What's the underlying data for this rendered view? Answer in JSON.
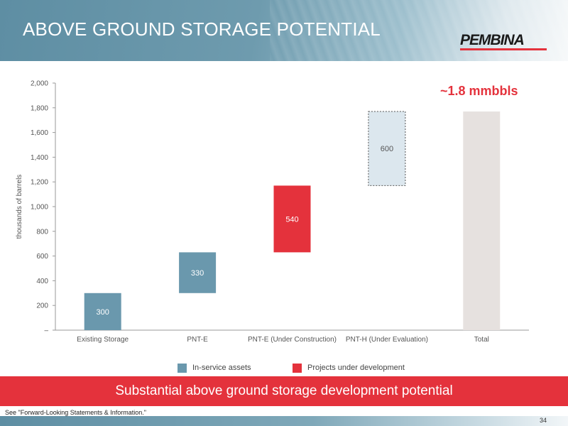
{
  "header": {
    "title": "ABOVE GROUND STORAGE POTENTIAL",
    "logo_text": "PEMBINA"
  },
  "callout": "~1.8 mmbbls",
  "legend": {
    "items": [
      {
        "label": "In-service assets",
        "color": "#6a98ad"
      },
      {
        "label": "Projects under development",
        "color": "#e4323c"
      }
    ]
  },
  "banner": "Substantial above ground storage development potential",
  "footnote": "See \"Forward-Looking Statements & Information.\"",
  "page_number": "34",
  "colors": {
    "in_service": "#6a98ad",
    "under_development": "#e4323c",
    "under_evaluation": "#dce7ee",
    "total": "#e6e1df"
  },
  "chart_data": {
    "type": "bar",
    "subtype": "waterfall",
    "ylabel": "thousands of barrels",
    "ylim": [
      0,
      2000
    ],
    "yticks": [
      0,
      200,
      400,
      600,
      800,
      1000,
      1200,
      1400,
      1600,
      1800,
      2000
    ],
    "ytick_labels": [
      "–",
      "200",
      "400",
      "600",
      "800",
      "1,000",
      "1,200",
      "1,400",
      "1,600",
      "1,800",
      "2,000"
    ],
    "categories": [
      "Existing Storage",
      "PNT-E",
      "PNT-E (Under Construction)",
      "PNT-H (Under Evaluation)",
      "Total"
    ],
    "bars": [
      {
        "category": "Existing Storage",
        "base": 0,
        "value": 300,
        "label": "300",
        "style": "in_service"
      },
      {
        "category": "PNT-E",
        "base": 300,
        "value": 330,
        "label": "330",
        "style": "in_service"
      },
      {
        "category": "PNT-E (Under Construction)",
        "base": 630,
        "value": 540,
        "label": "540",
        "style": "under_development"
      },
      {
        "category": "PNT-H (Under Evaluation)",
        "base": 1170,
        "value": 600,
        "label": "600",
        "style": "under_evaluation"
      },
      {
        "category": "Total",
        "base": 0,
        "value": 1770,
        "label": "",
        "style": "total"
      }
    ],
    "grid": false,
    "legend_position": "bottom"
  }
}
